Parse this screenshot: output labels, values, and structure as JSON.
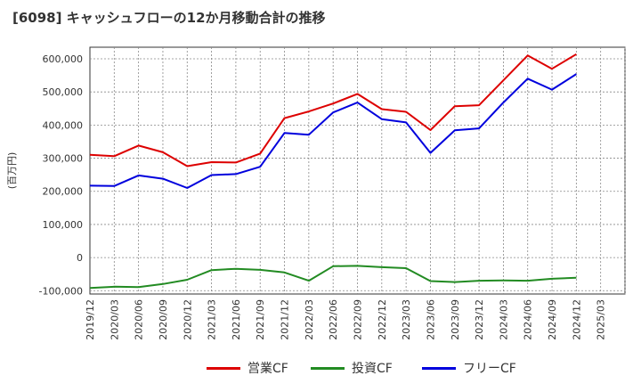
{
  "title": "[6098]  キャッシュフローの12か月移動合計の推移",
  "chart_data": {
    "type": "line",
    "title": "[6098]  キャッシュフローの12か月移動合計の推移",
    "ylabel": "(百万円)",
    "xlabel": "",
    "ylim": [
      -110000,
      635000
    ],
    "yticks": [
      -100000,
      0,
      100000,
      200000,
      300000,
      400000,
      500000,
      600000
    ],
    "ytick_labels": [
      "-100,000",
      "0",
      "100,000",
      "200,000",
      "300,000",
      "400,000",
      "500,000",
      "600,000"
    ],
    "x": [
      "2019/12",
      "2020/03",
      "2020/06",
      "2020/09",
      "2020/12",
      "2021/03",
      "2021/06",
      "2021/09",
      "2021/12",
      "2022/03",
      "2022/06",
      "2022/09",
      "2022/12",
      "2023/03",
      "2023/06",
      "2023/09",
      "2023/12",
      "2024/03",
      "2024/06",
      "2024/09",
      "2024/12"
    ],
    "xtick_labels": [
      "2019/12",
      "2020/03",
      "2020/06",
      "2020/09",
      "2020/12",
      "2021/03",
      "2021/06",
      "2021/09",
      "2021/12",
      "2022/03",
      "2022/06",
      "2022/09",
      "2022/12",
      "2023/03",
      "2023/06",
      "2023/09",
      "2023/12",
      "2024/03",
      "2024/06",
      "2024/09",
      "2024/12",
      "2025/03"
    ],
    "grid": true,
    "legend_position": "bottom",
    "series": [
      {
        "name": "営業CF",
        "color": "#dd0000",
        "values": [
          310000,
          306000,
          338000,
          318000,
          276000,
          288000,
          287000,
          314000,
          421000,
          441000,
          465000,
          494000,
          448000,
          440000,
          385000,
          457000,
          460000,
          535000,
          610000,
          570000,
          614000
        ]
      },
      {
        "name": "投資CF",
        "color": "#228b22",
        "values": [
          -92000,
          -88000,
          -89000,
          -80000,
          -67000,
          -38000,
          -34000,
          -37000,
          -45000,
          -70000,
          -26000,
          -25000,
          -29000,
          -32000,
          -71000,
          -74000,
          -70000,
          -69000,
          -70000,
          -64000,
          -61000
        ]
      },
      {
        "name": "フリーCF",
        "color": "#0000dd",
        "values": [
          217000,
          216000,
          248000,
          238000,
          210000,
          249000,
          252000,
          274000,
          376000,
          371000,
          438000,
          468000,
          418000,
          408000,
          316000,
          384000,
          390000,
          468000,
          540000,
          507000,
          554000
        ]
      }
    ]
  }
}
